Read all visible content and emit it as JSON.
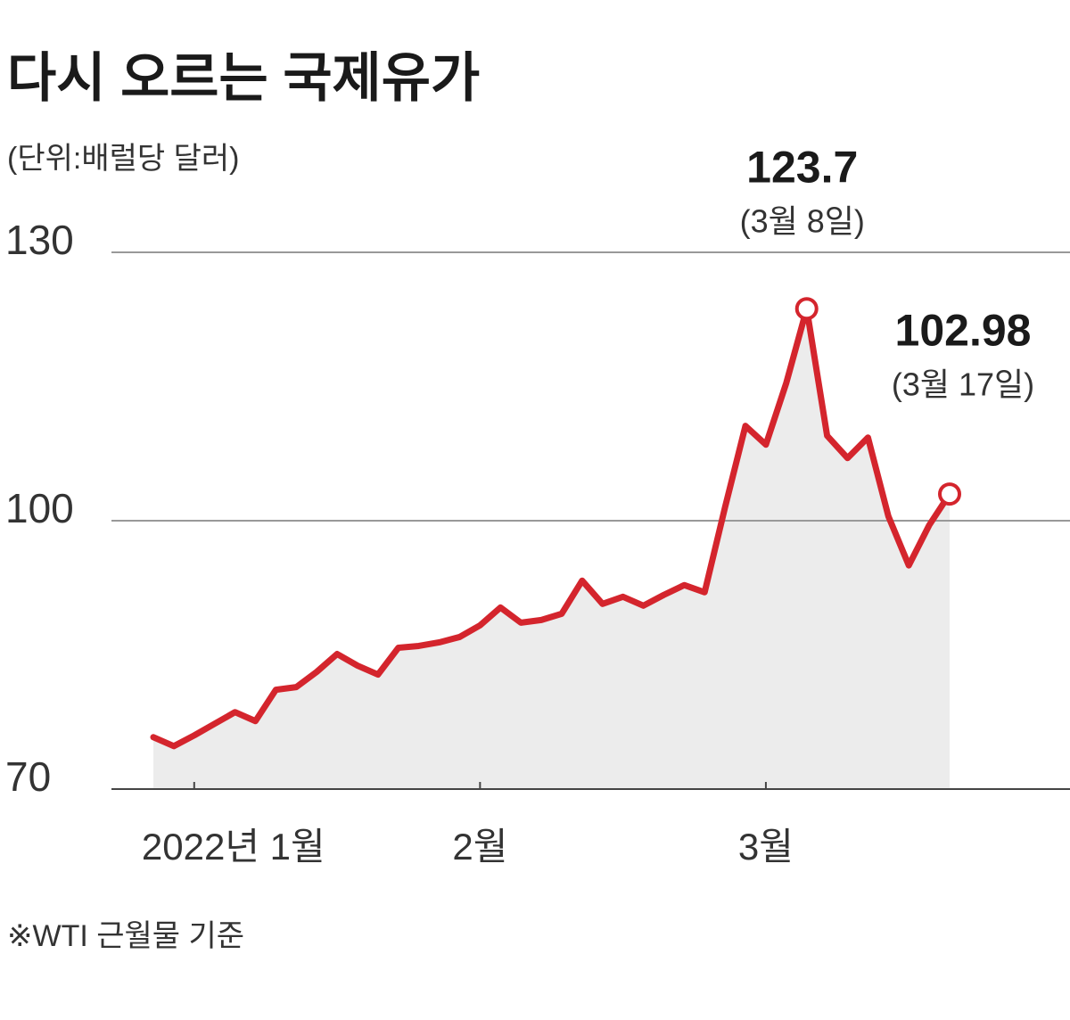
{
  "chart_data": {
    "type": "line",
    "title": "다시 오르는 국제유가",
    "subtitle": "(단위:배럴당 달러)",
    "footnote": "※WTI 근월물 기준",
    "categories": [
      null,
      null,
      "2022년 1월",
      null,
      null,
      null,
      null,
      null,
      null,
      null,
      null,
      null,
      null,
      null,
      null,
      null,
      "2월",
      null,
      null,
      null,
      null,
      null,
      null,
      null,
      null,
      null,
      null,
      null,
      null,
      null,
      "3월",
      null,
      null,
      null,
      null,
      null,
      null,
      null,
      null,
      null
    ],
    "values": [
      75.8,
      74.8,
      76.0,
      77.3,
      78.6,
      77.6,
      81.1,
      81.4,
      83.1,
      85.1,
      83.8,
      82.8,
      85.8,
      86.0,
      86.4,
      87.0,
      88.3,
      90.3,
      88.6,
      88.9,
      89.6,
      93.3,
      90.7,
      91.5,
      90.5,
      91.7,
      92.8,
      92.0,
      101.5,
      110.6,
      108.5,
      115.4,
      123.7,
      109.5,
      107.0,
      109.3,
      100.5,
      95.0,
      99.5,
      102.98
    ],
    "notes": [
      null,
      null,
      null,
      null,
      null,
      null,
      null,
      null,
      null,
      null,
      null,
      null,
      null,
      null,
      null,
      null,
      null,
      null,
      null,
      null,
      null,
      null,
      null,
      null,
      null,
      null,
      null,
      null,
      null,
      null,
      null,
      null,
      "(3월 8일)",
      null,
      null,
      null,
      null,
      null,
      null,
      "(3월 17일)"
    ],
    "color": "#d4252d",
    "area_color": "#ececec",
    "ylim": [
      70,
      130
    ],
    "yticks": [
      70,
      100,
      130
    ],
    "grid": true
  }
}
